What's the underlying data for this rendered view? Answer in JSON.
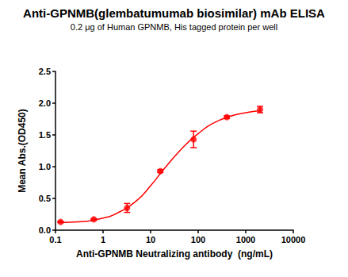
{
  "chart_data": {
    "type": "scatter",
    "title": "Anti-GPNMB(glembatumumab biosimilar) mAb ELISA",
    "subtitle": "0.2 μg of Human GPNMB, His tagged protein per well",
    "x_label": "Anti-GPNMB Neutralizing antibody  (ng/mL)",
    "y_label": "Mean Abs.(OD450)",
    "log": "x",
    "grid": false,
    "xlim": [
      0.1,
      10000
    ],
    "xticks": [
      0.1,
      1,
      10,
      100,
      1000,
      10000
    ],
    "ylim": [
      0,
      2.5
    ],
    "yticks": [
      {
        "value": 0,
        "label": "0.0"
      },
      0.5,
      {
        "value": 1,
        "label": "1.0"
      },
      1.5,
      {
        "value": 2,
        "label": "2.0"
      },
      2.5
    ],
    "series": [
      {
        "type": "scatter",
        "marker": "circle",
        "color": "#ff0000",
        "x": [
          0.128,
          0.64,
          3.2,
          16,
          80,
          400,
          2000
        ],
        "values": [
          0.13,
          0.17,
          0.35,
          0.93,
          1.43,
          1.78,
          1.9
        ],
        "errors": [
          0.01,
          0.01,
          0.07,
          0.02,
          0.13,
          0.02,
          0.05
        ]
      },
      {
        "type": "line",
        "color": "#ff0000",
        "x": [
          0.128,
          0.3,
          1,
          2,
          5,
          10,
          20,
          50,
          100,
          200,
          500,
          1000,
          2000
        ],
        "values": [
          0.12,
          0.13,
          0.19,
          0.27,
          0.46,
          0.7,
          0.98,
          1.32,
          1.52,
          1.68,
          1.8,
          1.85,
          1.88
        ]
      }
    ]
  }
}
